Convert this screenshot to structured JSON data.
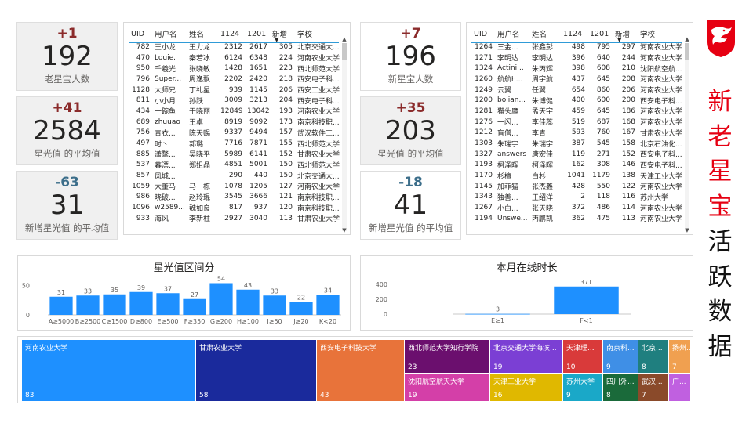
{
  "kpis_old": [
    {
      "delta": "+1",
      "value": "192",
      "label": "老星宝人数",
      "sign": "pos"
    },
    {
      "delta": "+41",
      "value": "2584",
      "label": "星光值 的平均值",
      "sign": "pos"
    },
    {
      "delta": "-63",
      "value": "31",
      "label": "新增星光值 的平均值",
      "sign": "neg"
    }
  ],
  "kpis_new": [
    {
      "delta": "+7",
      "value": "196",
      "label": "新星宝人数",
      "sign": "pos"
    },
    {
      "delta": "+35",
      "value": "203",
      "label": "星光值 的平均值",
      "sign": "pos"
    },
    {
      "delta": "-18",
      "value": "41",
      "label": "新增星光值 的平均值",
      "sign": "neg"
    }
  ],
  "table_left": {
    "headers": [
      "UID",
      "用户名",
      "姓名",
      "1124",
      "1201",
      "新增",
      "学校"
    ],
    "rows": [
      [
        "782",
        "王小龙",
        "王力龙",
        "2312",
        "2617",
        "305",
        "北京交通大..."
      ],
      [
        "470",
        "Louie.",
        "秦若冰",
        "6124",
        "6348",
        "224",
        "河南农业大学"
      ],
      [
        "950",
        "千羲光",
        "张晓敏",
        "1428",
        "1651",
        "223",
        "西北师范大学"
      ],
      [
        "796",
        "Super...",
        "周逸飘",
        "2202",
        "2420",
        "218",
        "西安电子科..."
      ],
      [
        "1128",
        "大师兄",
        "丁礼星",
        "939",
        "1145",
        "206",
        "西安工业大学"
      ],
      [
        "811",
        "小小月",
        "孙跃",
        "3009",
        "3213",
        "204",
        "西安电子科..."
      ],
      [
        "434",
        "一碗鱼",
        "于晓丽",
        "12849",
        "13042",
        "193",
        "河南农业大学"
      ],
      [
        "689",
        "zhuuao",
        "王卓",
        "8919",
        "9092",
        "173",
        "南京科技职..."
      ],
      [
        "756",
        "青衣...",
        "陈天赐",
        "9337",
        "9494",
        "157",
        "武汉软件工..."
      ],
      [
        "497",
        "时丶",
        "郭璐",
        "7716",
        "7871",
        "155",
        "西北师范大学"
      ],
      [
        "885",
        "潇鹜...",
        "吴晓平",
        "5989",
        "6141",
        "152",
        "甘肃农业大学"
      ],
      [
        "537",
        "暮漂...",
        "郑姐晶",
        "4851",
        "5001",
        "150",
        "西北师范大学"
      ],
      [
        "857",
        "风城...",
        "",
        "290",
        "440",
        "150",
        "北京交通大..."
      ],
      [
        "1059",
        "大董马",
        "马一栋",
        "1078",
        "1205",
        "127",
        "河南农业大学"
      ],
      [
        "986",
        "晓破...",
        "赵玲琨",
        "3545",
        "3666",
        "121",
        "南京科技职..."
      ],
      [
        "1096",
        "w2589...",
        "魏如良",
        "817",
        "937",
        "120",
        "南京科技职..."
      ],
      [
        "933",
        "海风",
        "李新柱",
        "2927",
        "3040",
        "113",
        "甘肃农业大学"
      ]
    ]
  },
  "table_right": {
    "headers": [
      "UID",
      "用户名",
      "姓名",
      "1124",
      "1201",
      "新增",
      "学校"
    ],
    "rows": [
      [
        "1264",
        "三金...",
        "张鑫彭",
        "498",
        "795",
        "297",
        "河南农业大学"
      ],
      [
        "1271",
        "李明达",
        "李明达",
        "396",
        "640",
        "244",
        "河南农业大学"
      ],
      [
        "1324",
        "Actini...",
        "朱丙辉",
        "398",
        "608",
        "210",
        "沈阳航空航..."
      ],
      [
        "1260",
        "航航h...",
        "周宇航",
        "437",
        "645",
        "208",
        "河南农业大学"
      ],
      [
        "1249",
        "云翼",
        "任翼",
        "654",
        "860",
        "206",
        "河南农业大学"
      ],
      [
        "1200",
        "bojian...",
        "朱博健",
        "400",
        "600",
        "200",
        "西安电子科..."
      ],
      [
        "1281",
        "猫头鹰",
        "孟天宇",
        "459",
        "645",
        "186",
        "河南农业大学"
      ],
      [
        "1276",
        "一闪...",
        "李佳蕊",
        "519",
        "687",
        "168",
        "河南农业大学"
      ],
      [
        "1212",
        "盲僧...",
        "李青",
        "593",
        "760",
        "167",
        "甘肃农业大学"
      ],
      [
        "1303",
        "朱瑞宇",
        "朱瑞宇",
        "387",
        "545",
        "158",
        "北京石油化..."
      ],
      [
        "1327",
        "answers",
        "唐宏佳",
        "119",
        "271",
        "152",
        "西安电子科..."
      ],
      [
        "1193",
        "柯泽晖",
        "柯泽晖",
        "162",
        "308",
        "146",
        "西安电子科..."
      ],
      [
        "1170",
        "杉檀",
        "白杉",
        "1041",
        "1179",
        "138",
        "天津工业大学"
      ],
      [
        "1145",
        "加菲猫",
        "张杰鑫",
        "428",
        "550",
        "122",
        "河南农业大学"
      ],
      [
        "1343",
        "独善...",
        "王绍洋",
        "2",
        "118",
        "116",
        "苏州大学"
      ],
      [
        "1267",
        "小白...",
        "张天晓",
        "372",
        "486",
        "114",
        "河南农业大学"
      ],
      [
        "1194",
        "Unswe...",
        "丙鹏凯",
        "362",
        "475",
        "113",
        "河南农业大学"
      ]
    ]
  },
  "chart_star": {
    "title": "星光值区间分",
    "chart_data": {
      "type": "bar",
      "categories": [
        "A≥5000",
        "B≥2500",
        "C≥1500",
        "D≥800",
        "E≥500",
        "F≥350",
        "G≥200",
        "H≥100",
        "I≥50",
        "J≥20",
        "K<20"
      ],
      "values": [
        31,
        33,
        35,
        39,
        37,
        27,
        54,
        43,
        33,
        22,
        34
      ],
      "yticks": [
        "0",
        "50"
      ],
      "ylim": [
        0,
        60
      ],
      "color": "#1e90ff"
    }
  },
  "chart_online": {
    "title": "本月在线时长",
    "chart_data": {
      "type": "bar",
      "categories": [
        "E≥1",
        "F<1"
      ],
      "values": [
        3,
        371
      ],
      "yticks": [
        "0",
        "200",
        "400"
      ],
      "ylim": [
        0,
        400
      ],
      "color": "#1e90ff"
    }
  },
  "treemap": [
    {
      "name": "河南农业大学",
      "value": "83",
      "color": "#1e90ff"
    },
    {
      "name": "甘肃农业大学",
      "value": "58",
      "color": "#1a2a9c"
    },
    {
      "name": "西安电子科技大学",
      "value": "43",
      "color": "#e8733a"
    },
    {
      "name": "西北师范大学知行学院",
      "value": "23",
      "color": "#6b0f6e"
    },
    {
      "name": "北京交通大学海滨...",
      "value": "19",
      "color": "#7b3fd4"
    },
    {
      "name": "天津理...",
      "value": "10",
      "color": "#d93a3a"
    },
    {
      "name": "南京科...",
      "value": "9",
      "color": "#3f8fe6"
    },
    {
      "name": "北京...",
      "value": "8",
      "color": "#1f7f7f"
    },
    {
      "name": "扬州...",
      "value": "7",
      "color": "#f0a050"
    },
    {
      "name": "沈阳航空航天大学",
      "value": "19",
      "color": "#d43fa8"
    },
    {
      "name": "天津工业大学",
      "value": "16",
      "color": "#e0b800"
    },
    {
      "name": "苏州大学",
      "value": "9",
      "color": "#1aa8c8"
    },
    {
      "name": "四川外...",
      "value": "8",
      "color": "#1a6a3a"
    },
    {
      "name": "武汉...",
      "value": "7",
      "color": "#8a4a2a"
    },
    {
      "name": "广...",
      "value": "",
      "color": "#c060e0"
    }
  ],
  "side_title": [
    "新",
    "老",
    "星",
    "宝",
    "活",
    "跃",
    "数",
    "据"
  ],
  "brand_color": "#e60012"
}
